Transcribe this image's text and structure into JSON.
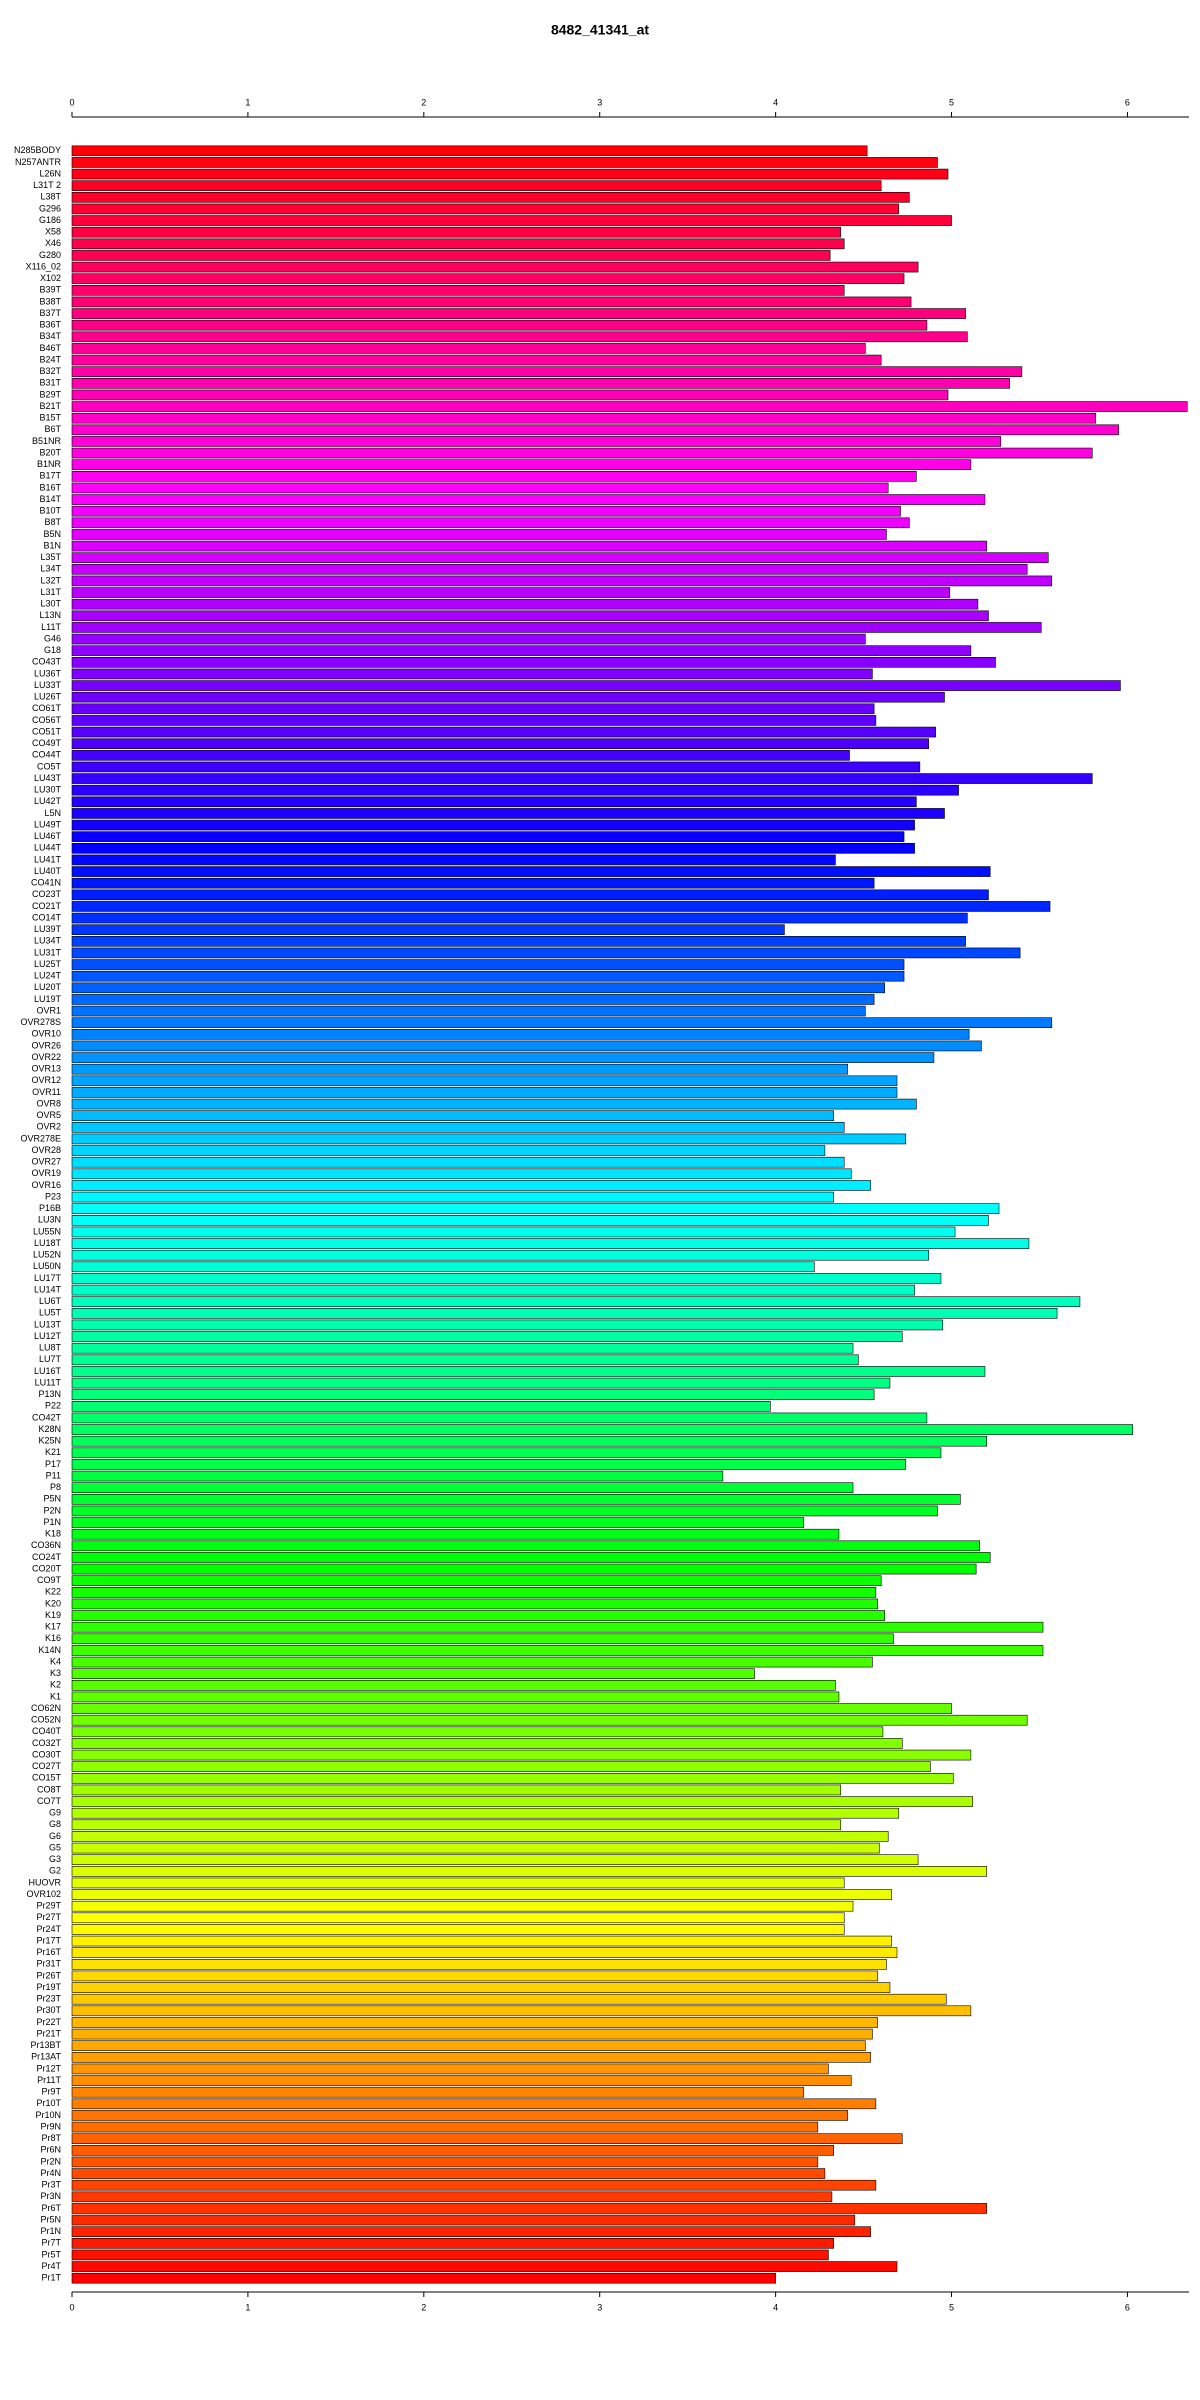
{
  "chart_data": {
    "type": "barh",
    "title": "8482_41341_at",
    "palette": "rainbow",
    "xlim": [
      0,
      6.35
    ],
    "xticks": [
      0,
      1,
      2,
      3,
      4,
      5,
      6
    ],
    "categories": [
      "N285BODY",
      "N257ANTR",
      "L26N",
      "L31T 2",
      "L38T",
      "G296",
      "G186",
      "X58",
      "X46",
      "G280",
      "X116_02",
      "X102",
      "B39T",
      "B38T",
      "B37T",
      "B36T",
      "B34T",
      "B46T",
      "B24T",
      "B32T",
      "B31T",
      "B29T",
      "B21T",
      "B15T",
      "B6T",
      "B51NR",
      "B20T",
      "B1NR",
      "B17T",
      "B16T",
      "B14T",
      "B10T",
      "B8T",
      "B5N",
      "B1N",
      "L35T",
      "L34T",
      "L32T",
      "L31T",
      "L30T",
      "L13N",
      "L11T",
      "G46",
      "G18",
      "CO43T",
      "LU36T",
      "LU33T",
      "LU26T",
      "CO61T",
      "CO56T",
      "CO51T",
      "CO49T",
      "CO44T",
      "CO5T",
      "LU43T",
      "LU30T",
      "LU42T",
      "L5N",
      "LU49T",
      "LU46T",
      "LU44T",
      "LU41T",
      "LU40T",
      "CO41N",
      "CO23T",
      "CO21T",
      "CO14T",
      "LU39T",
      "LU34T",
      "LU31T",
      "LU25T",
      "LU24T",
      "LU20T",
      "LU19T",
      "OVR1",
      "OVR278S",
      "OVR10",
      "OVR26",
      "OVR22",
      "OVR13",
      "OVR12",
      "OVR11",
      "OVR8",
      "OVR5",
      "OVR2",
      "OVR278E",
      "OVR28",
      "OVR27",
      "OVR19",
      "OVR16",
      "P23",
      "P16B",
      "LU3N",
      "LU55N",
      "LU18T",
      "LU52N",
      "LU50N",
      "LU17T",
      "LU14T",
      "LU6T",
      "LU5T",
      "LU13T",
      "LU12T",
      "LU8T",
      "LU7T",
      "LU16T",
      "LU11T",
      "P13N",
      "P22",
      "CO42T",
      "K28N",
      "K25N",
      "K21",
      "P17",
      "P11",
      "P8",
      "P5N",
      "P2N",
      "P1N",
      "K18",
      "CO36N",
      "CO24T",
      "CO20T",
      "CO9T",
      "K22",
      "K20",
      "K19",
      "K17",
      "K16",
      "K14N",
      "K4",
      "K3",
      "K2",
      "K1",
      "CO62N",
      "CO52N",
      "CO40T",
      "CO32T",
      "CO30T",
      "CO27T",
      "CO15T",
      "CO8T",
      "CO7T",
      "G9",
      "G8",
      "G6",
      "G5",
      "G3",
      "G2",
      "HUOVR",
      "OVR102",
      "Pr29T",
      "Pr27T",
      "Pr24T",
      "Pr17T",
      "Pr16T",
      "Pr31T",
      "Pr26T",
      "Pr19T",
      "Pr23T",
      "Pr30T",
      "Pr22T",
      "Pr21T",
      "Pr13BT",
      "Pr13AT",
      "Pr12T",
      "Pr11T",
      "Pr9T",
      "Pr10T",
      "Pr10N",
      "Pr9N",
      "Pr8T",
      "Pr6N",
      "Pr2N",
      "Pr4N",
      "Pr3T",
      "Pr3N",
      "Pr6T",
      "Pr5N",
      "Pr1N",
      "Pr7T",
      "Pr5T",
      "Pr4T",
      "Pr1T"
    ],
    "values": [
      4.52,
      4.92,
      4.98,
      4.6,
      4.76,
      4.7,
      5.0,
      4.37,
      4.39,
      4.31,
      4.81,
      4.73,
      4.39,
      4.77,
      5.08,
      4.86,
      5.09,
      4.51,
      4.6,
      5.4,
      5.33,
      4.98,
      6.34,
      5.82,
      5.95,
      5.28,
      5.8,
      5.11,
      4.8,
      4.64,
      5.19,
      4.71,
      4.76,
      4.63,
      5.2,
      5.55,
      5.43,
      5.57,
      4.99,
      5.15,
      5.21,
      5.51,
      4.51,
      5.11,
      5.25,
      4.55,
      5.96,
      4.96,
      4.56,
      4.57,
      4.91,
      4.87,
      4.42,
      4.82,
      5.8,
      5.04,
      4.8,
      4.96,
      4.79,
      4.73,
      4.79,
      4.34,
      5.22,
      4.56,
      5.21,
      5.56,
      5.09,
      4.05,
      5.08,
      5.39,
      4.73,
      4.73,
      4.62,
      4.56,
      4.51,
      5.57,
      5.1,
      5.17,
      4.9,
      4.41,
      4.69,
      4.69,
      4.8,
      4.33,
      4.39,
      4.74,
      4.28,
      4.39,
      4.43,
      4.54,
      4.33,
      5.27,
      5.21,
      5.02,
      5.44,
      4.87,
      4.22,
      4.94,
      4.79,
      5.73,
      5.6,
      4.95,
      4.72,
      4.44,
      4.47,
      5.19,
      4.65,
      4.56,
      3.97,
      4.86,
      6.03,
      5.2,
      4.94,
      4.74,
      3.7,
      4.44,
      5.05,
      4.92,
      4.16,
      4.36,
      5.16,
      5.22,
      5.14,
      4.6,
      4.57,
      4.58,
      4.62,
      5.52,
      4.67,
      5.52,
      4.55,
      3.88,
      4.34,
      4.36,
      5.0,
      5.43,
      4.61,
      4.72,
      5.11,
      4.88,
      5.01,
      4.37,
      5.12,
      4.7,
      4.37,
      4.64,
      4.59,
      4.81,
      5.2,
      4.39,
      4.66,
      4.44,
      4.39,
      4.39,
      4.66,
      4.69,
      4.63,
      4.58,
      4.65,
      4.97,
      5.11,
      4.58,
      4.55,
      4.51,
      4.54,
      4.3,
      4.43,
      4.16,
      4.57,
      4.41,
      4.24,
      4.72,
      4.33,
      4.24,
      4.28,
      4.57,
      4.32,
      5.2,
      4.45,
      4.54,
      4.33,
      4.3,
      4.69,
      4.0
    ]
  }
}
